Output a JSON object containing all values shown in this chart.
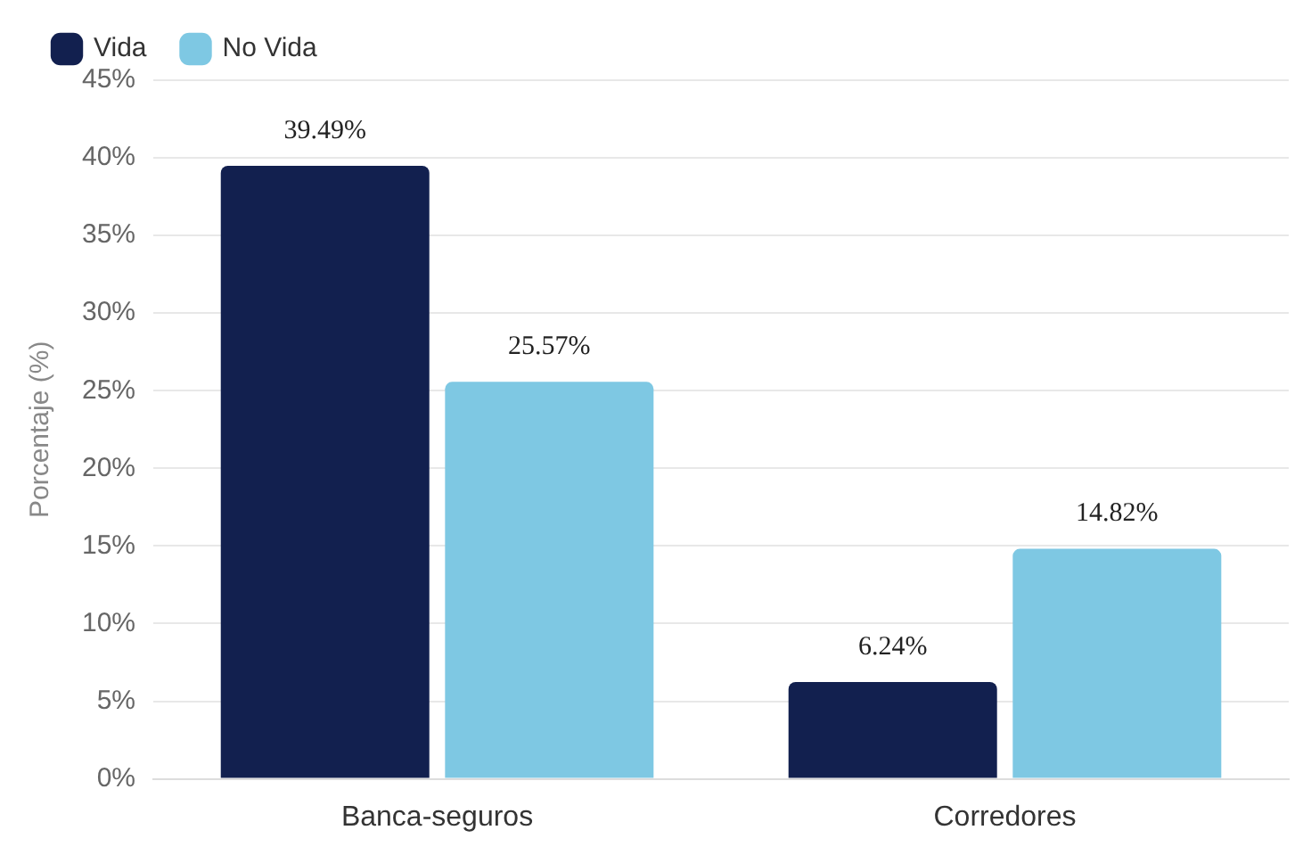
{
  "chart_data": {
    "type": "bar",
    "ylabel": "Porcentaje (%)",
    "categories": [
      "Banca-seguros",
      "Corredores"
    ],
    "series": [
      {
        "name": "Vida",
        "color": "#12204f",
        "values": [
          39.49,
          6.24
        ],
        "value_labels": [
          "39.49%",
          "6.24%"
        ]
      },
      {
        "name": "No Vida",
        "color": "#7ec8e3",
        "values": [
          25.57,
          14.82
        ],
        "value_labels": [
          "25.57%",
          "14.82%"
        ]
      }
    ],
    "ylim": [
      0,
      45
    ],
    "yticks": [
      {
        "value": 0,
        "label": "0%"
      },
      {
        "value": 5,
        "label": "5%"
      },
      {
        "value": 10,
        "label": "10%"
      },
      {
        "value": 15,
        "label": "15%"
      },
      {
        "value": 20,
        "label": "20%"
      },
      {
        "value": 25,
        "label": "25%"
      },
      {
        "value": 30,
        "label": "30%"
      },
      {
        "value": 35,
        "label": "35%"
      },
      {
        "value": 40,
        "label": "40%"
      },
      {
        "value": 45,
        "label": "45%"
      }
    ],
    "grid": "y",
    "legend": "top left"
  }
}
